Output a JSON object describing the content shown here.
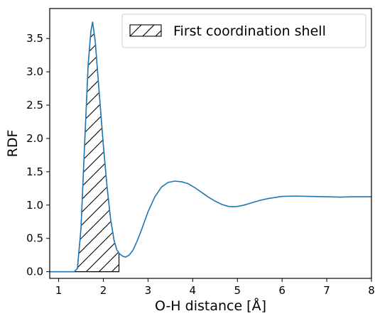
{
  "chart_data": {
    "type": "line",
    "title": "",
    "xlabel": "O-H distance [Å]",
    "ylabel": "RDF",
    "xlim": [
      0.8,
      8.0
    ],
    "ylim": [
      -0.1,
      3.95
    ],
    "xticks": [
      1,
      2,
      3,
      4,
      5,
      6,
      7,
      8
    ],
    "yticks": [
      0.0,
      0.5,
      1.0,
      1.5,
      2.0,
      2.5,
      3.0,
      3.5
    ],
    "xtick_labels": [
      "1",
      "2",
      "3",
      "4",
      "5",
      "6",
      "7",
      "8"
    ],
    "ytick_labels": [
      "0.0",
      "0.5",
      "1.0",
      "1.5",
      "2.0",
      "2.5",
      "3.0",
      "3.5"
    ],
    "grid": false,
    "legend_position": "top-right",
    "line_color": "#1f77b4",
    "shaded_region": {
      "label": "First coordination shell",
      "x_end": 2.35,
      "hatch": "/"
    },
    "series": [
      {
        "x": [
          0.8,
          1.0,
          1.2,
          1.35,
          1.42,
          1.5,
          1.58,
          1.66,
          1.72,
          1.76,
          1.82,
          1.9,
          2.0,
          2.08,
          2.16,
          2.24,
          2.3,
          2.36,
          2.44,
          2.5,
          2.58,
          2.66,
          2.75,
          2.85,
          3.0,
          3.15,
          3.3,
          3.45,
          3.6,
          3.75,
          3.9,
          4.05,
          4.2,
          4.35,
          4.5,
          4.65,
          4.8,
          4.9,
          5.0,
          5.15,
          5.3,
          5.5,
          5.7,
          6.0,
          6.3,
          6.6,
          7.0,
          7.3,
          7.6,
          8.0
        ],
        "y": [
          0.0,
          0.0,
          0.0,
          0.0,
          0.05,
          0.65,
          1.9,
          3.1,
          3.6,
          3.75,
          3.45,
          2.75,
          1.9,
          1.3,
          0.8,
          0.47,
          0.33,
          0.27,
          0.23,
          0.22,
          0.25,
          0.32,
          0.45,
          0.62,
          0.9,
          1.12,
          1.27,
          1.34,
          1.36,
          1.35,
          1.32,
          1.26,
          1.19,
          1.12,
          1.06,
          1.01,
          0.98,
          0.975,
          0.98,
          1.0,
          1.03,
          1.07,
          1.1,
          1.13,
          1.135,
          1.13,
          1.125,
          1.12,
          1.125,
          1.125
        ]
      }
    ]
  }
}
